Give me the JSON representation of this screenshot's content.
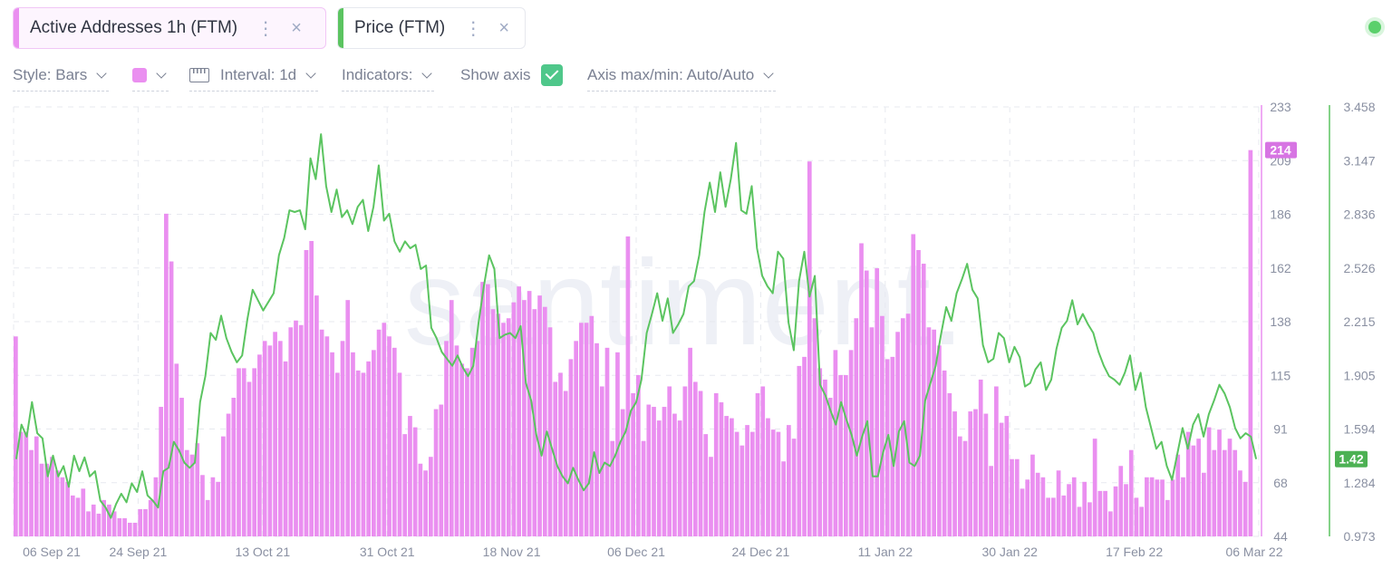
{
  "tabs": [
    {
      "label": "Active Addresses 1h (FTM)",
      "color": "#ea8ff0"
    },
    {
      "label": "Price (FTM)",
      "color": "#5bc460"
    }
  ],
  "tab_icons": {
    "more": "⋮",
    "close": "×"
  },
  "controls": {
    "style": "Style: Bars",
    "interval": "Interval: 1d",
    "indicators": "Indicators:",
    "show_axis": "Show axis",
    "axis_maxmin": "Axis max/min: Auto/Auto"
  },
  "watermark": "santiment.",
  "chart_data": {
    "type": "bar+line",
    "x_tick_labels": [
      "06 Sep 21",
      "24 Sep 21",
      "13 Oct 21",
      "31 Oct 21",
      "18 Nov 21",
      "06 Dec 21",
      "24 Dec 21",
      "11 Jan 22",
      "30 Jan 22",
      "17 Feb 22",
      "06 Mar 22"
    ],
    "left_axis": {
      "ticks": [
        "233",
        "209",
        "186",
        "162",
        "138",
        "115",
        "91",
        "68",
        "44"
      ],
      "min": 44,
      "max": 233,
      "current_label": "214",
      "color": "#ea8ff0"
    },
    "right_axis": {
      "ticks": [
        "3.458",
        "3.147",
        "2.836",
        "2.526",
        "2.215",
        "1.905",
        "1.594",
        "1.284",
        "0.973"
      ],
      "min": 0.973,
      "max": 3.458,
      "current_label": "1.42",
      "color": "#5bc460"
    },
    "series": [
      {
        "name": "Active Addresses 1h (FTM)",
        "type": "bar",
        "values": [
          132,
          90,
          90,
          82,
          88,
          76,
          76,
          79,
          73,
          70,
          68,
          62,
          61,
          65,
          55,
          58,
          54,
          60,
          58,
          55,
          52,
          52,
          50,
          50,
          56,
          56,
          60,
          70,
          101,
          186,
          165,
          120,
          105,
          82,
          80,
          85,
          71,
          60,
          70,
          68,
          88,
          98,
          105,
          118,
          118,
          112,
          118,
          124,
          130,
          128,
          134,
          130,
          121,
          136,
          139,
          137,
          170,
          174,
          150,
          135,
          132,
          125,
          116,
          130,
          148,
          125,
          117,
          116,
          121,
          126,
          135,
          138,
          132,
          127,
          116,
          89,
          97,
          92,
          76,
          73,
          79,
          100,
          102,
          130,
          148,
          128,
          120,
          118,
          127,
          130,
          156,
          155,
          144,
          142,
          138,
          140,
          147,
          154,
          148,
          152,
          144,
          150,
          145,
          136,
          112,
          116,
          108,
          122,
          130,
          138,
          138,
          141,
          129,
          110,
          127,
          86,
          125,
          100,
          176,
          107,
          115,
          86,
          102,
          101,
          95,
          101,
          110,
          98,
          95,
          110,
          127,
          112,
          108,
          89,
          79,
          107,
          103,
          97,
          96,
          90,
          84,
          93,
          90,
          107,
          110,
          96,
          91,
          90,
          77,
          93,
          87,
          119,
          123,
          209,
          140,
          118,
          113,
          105,
          126,
          115,
          115,
          126,
          140,
          173,
          161,
          136,
          162,
          141,
          122,
          123,
          134,
          140,
          142,
          177,
          170,
          164,
          136,
          135,
          128,
          117,
          107,
          99,
          88,
          86,
          99,
          100,
          113,
          98,
          75,
          110,
          94,
          97,
          78,
          78,
          65,
          69,
          80,
          72,
          70,
          61,
          61,
          73,
          62,
          67,
          70,
          57,
          68,
          59,
          87,
          64,
          64,
          55,
          66,
          75,
          67,
          82,
          61,
          57,
          70,
          70,
          69,
          69,
          60,
          69,
          80,
          70,
          90,
          84,
          87,
          72,
          92,
          82,
          91,
          82,
          87,
          82,
          73,
          68,
          214,
          40
        ]
      },
      {
        "name": "Price (FTM)",
        "type": "line",
        "values": [
          1.42,
          1.62,
          1.55,
          1.75,
          1.57,
          1.54,
          1.32,
          1.44,
          1.32,
          1.38,
          1.26,
          1.44,
          1.35,
          1.43,
          1.32,
          1.35,
          1.18,
          1.14,
          1.08,
          1.16,
          1.22,
          1.17,
          1.28,
          1.23,
          1.35,
          1.21,
          1.18,
          1.14,
          1.35,
          1.37,
          1.52,
          1.47,
          1.4,
          1.37,
          1.4,
          1.75,
          1.9,
          2.15,
          2.11,
          2.25,
          2.12,
          2.04,
          1.98,
          2.02,
          2.23,
          2.4,
          2.34,
          2.28,
          2.33,
          2.38,
          2.6,
          2.7,
          2.86,
          2.85,
          2.86,
          2.75,
          3.16,
          3.04,
          3.3,
          3.0,
          2.85,
          2.98,
          2.82,
          2.86,
          2.78,
          2.88,
          2.92,
          2.74,
          2.88,
          3.12,
          2.8,
          2.84,
          2.68,
          2.62,
          2.68,
          2.64,
          2.66,
          2.52,
          2.54,
          2.18,
          2.12,
          2.04,
          2.0,
          1.96,
          2.02,
          1.95,
          1.9,
          1.96,
          2.21,
          2.42,
          2.6,
          2.52,
          2.12,
          2.14,
          2.15,
          2.12,
          2.19,
          1.86,
          1.76,
          1.56,
          1.44,
          1.58,
          1.48,
          1.38,
          1.32,
          1.28,
          1.37,
          1.3,
          1.24,
          1.28,
          1.46,
          1.34,
          1.4,
          1.38,
          1.44,
          1.52,
          1.58,
          1.7,
          1.75,
          1.88,
          2.15,
          2.26,
          2.38,
          2.22,
          2.35,
          2.15,
          2.2,
          2.26,
          2.42,
          2.45,
          2.6,
          2.85,
          3.02,
          2.85,
          3.08,
          2.88,
          3.04,
          3.25,
          2.86,
          2.84,
          3.0,
          2.64,
          2.48,
          2.42,
          2.38,
          2.62,
          2.58,
          2.21,
          2.05,
          2.45,
          2.62,
          2.36,
          2.48,
          1.85,
          1.79,
          1.7,
          1.62,
          1.75,
          1.65,
          1.56,
          1.44,
          1.55,
          1.64,
          1.32,
          1.32,
          1.46,
          1.56,
          1.38,
          1.58,
          1.64,
          1.4,
          1.38,
          1.44,
          1.76,
          1.86,
          1.96,
          2.14,
          2.3,
          2.22,
          2.38,
          2.46,
          2.55,
          2.4,
          2.35,
          2.08,
          1.98,
          2.0,
          2.15,
          2.12,
          1.98,
          2.07,
          2.01,
          1.84,
          1.86,
          1.94,
          1.98,
          1.82,
          1.88,
          2.06,
          2.18,
          2.22,
          2.34,
          2.2,
          2.26,
          2.2,
          2.15,
          2.04,
          1.96,
          1.9,
          1.88,
          1.85,
          1.92,
          2.02,
          1.82,
          1.92,
          1.72,
          1.6,
          1.48,
          1.52,
          1.38,
          1.3,
          1.45,
          1.6,
          1.48,
          1.62,
          1.68,
          1.55,
          1.68,
          1.76,
          1.85,
          1.8,
          1.72,
          1.6,
          1.54,
          1.57,
          1.55,
          1.42
        ]
      }
    ]
  }
}
